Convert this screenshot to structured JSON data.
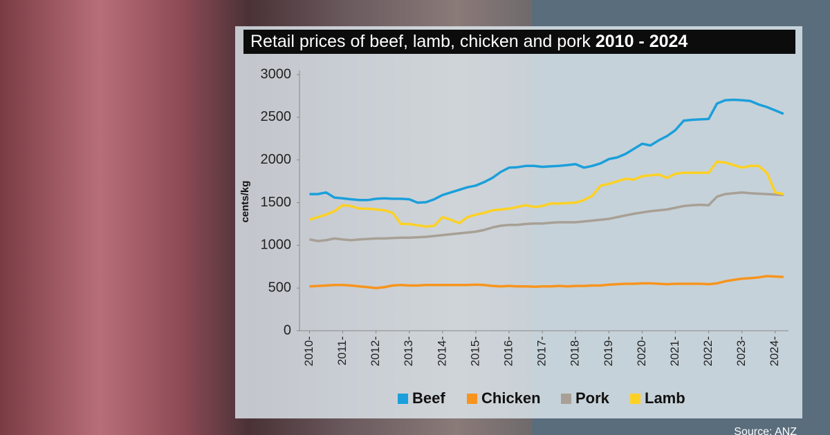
{
  "chart_data": {
    "type": "line",
    "title": "Retail prices of beef, lamb, chicken and pork",
    "title_highlight": "2010 - 2024",
    "y_label": "cents/kg",
    "source": "Source: ANZ",
    "x": [
      2010,
      2010.25,
      2010.5,
      2010.75,
      2011,
      2011.25,
      2011.5,
      2011.75,
      2012,
      2012.25,
      2012.5,
      2012.75,
      2013,
      2013.25,
      2013.5,
      2013.75,
      2014,
      2014.25,
      2014.5,
      2014.75,
      2015,
      2015.25,
      2015.5,
      2015.75,
      2016,
      2016.25,
      2016.5,
      2016.75,
      2017,
      2017.25,
      2017.5,
      2017.75,
      2018,
      2018.25,
      2018.5,
      2018.75,
      2019,
      2019.25,
      2019.5,
      2019.75,
      2020,
      2020.25,
      2020.5,
      2020.75,
      2021,
      2021.25,
      2021.5,
      2021.75,
      2022,
      2022.25,
      2022.5,
      2022.75,
      2023,
      2023.25,
      2023.5,
      2023.75,
      2024,
      2024.25
    ],
    "series": [
      {
        "name": "Beef",
        "color": "#1a9fdb",
        "values": [
          1600,
          1600,
          1620,
          1560,
          1550,
          1540,
          1530,
          1530,
          1545,
          1550,
          1545,
          1545,
          1540,
          1500,
          1505,
          1540,
          1590,
          1620,
          1650,
          1680,
          1700,
          1740,
          1790,
          1860,
          1910,
          1915,
          1930,
          1930,
          1920,
          1925,
          1930,
          1940,
          1950,
          1910,
          1930,
          1960,
          2010,
          2030,
          2070,
          2130,
          2190,
          2170,
          2230,
          2280,
          2350,
          2460,
          2470,
          2475,
          2480,
          2660,
          2700,
          2705,
          2700,
          2690,
          2650,
          2620,
          2580,
          2540
        ]
      },
      {
        "name": "Chicken",
        "color": "#f7941d",
        "values": [
          520,
          525,
          530,
          535,
          535,
          530,
          520,
          510,
          500,
          510,
          530,
          535,
          530,
          530,
          535,
          535,
          535,
          535,
          535,
          535,
          540,
          535,
          525,
          520,
          525,
          520,
          520,
          515,
          520,
          520,
          525,
          520,
          525,
          525,
          530,
          530,
          540,
          545,
          550,
          550,
          555,
          555,
          550,
          545,
          550,
          550,
          550,
          550,
          545,
          555,
          580,
          595,
          610,
          615,
          625,
          640,
          635,
          630
        ]
      },
      {
        "name": "Pork",
        "color": "#a8a096",
        "values": [
          1070,
          1050,
          1060,
          1080,
          1070,
          1060,
          1070,
          1075,
          1080,
          1080,
          1085,
          1090,
          1090,
          1095,
          1100,
          1110,
          1120,
          1130,
          1140,
          1150,
          1160,
          1180,
          1210,
          1230,
          1240,
          1240,
          1250,
          1255,
          1255,
          1265,
          1270,
          1270,
          1270,
          1280,
          1290,
          1300,
          1310,
          1330,
          1350,
          1370,
          1385,
          1400,
          1410,
          1420,
          1440,
          1460,
          1470,
          1475,
          1470,
          1570,
          1600,
          1610,
          1620,
          1610,
          1605,
          1600,
          1595,
          1590
        ]
      },
      {
        "name": "Lamb",
        "color": "#fdd124",
        "values": [
          1300,
          1330,
          1360,
          1400,
          1470,
          1460,
          1430,
          1430,
          1420,
          1410,
          1380,
          1250,
          1250,
          1235,
          1220,
          1230,
          1330,
          1300,
          1260,
          1330,
          1360,
          1380,
          1410,
          1420,
          1430,
          1450,
          1470,
          1450,
          1460,
          1490,
          1490,
          1495,
          1500,
          1530,
          1580,
          1700,
          1720,
          1750,
          1780,
          1770,
          1810,
          1820,
          1830,
          1790,
          1840,
          1850,
          1850,
          1850,
          1850,
          1980,
          1970,
          1940,
          1910,
          1930,
          1930,
          1850,
          1620,
          1600
        ]
      }
    ],
    "xlim": [
      2009.7,
      2024.4
    ],
    "xticks": [
      {
        "value": 2010,
        "label": "2010-"
      },
      {
        "value": 2011,
        "label": "2011-"
      },
      {
        "value": 2012,
        "label": "2012-"
      },
      {
        "value": 2013,
        "label": "2013-"
      },
      {
        "value": 2014,
        "label": "2014-"
      },
      {
        "value": 2015,
        "label": "2015-"
      },
      {
        "value": 2016,
        "label": "2016-"
      },
      {
        "value": 2017,
        "label": "2017-"
      },
      {
        "value": 2018,
        "label": "2018-"
      },
      {
        "value": 2019,
        "label": "2019-"
      },
      {
        "value": 2020,
        "label": "2020-"
      },
      {
        "value": 2021,
        "label": "2021-"
      },
      {
        "value": 2022,
        "label": "2022-"
      },
      {
        "value": 2023,
        "label": "2023-"
      },
      {
        "value": 2024,
        "label": "2024-"
      }
    ],
    "ylim": [
      0,
      3000
    ],
    "yticks": [
      0,
      500,
      1000,
      1500,
      2000,
      2500,
      3000
    ],
    "grid": false,
    "legend": "bottom"
  }
}
